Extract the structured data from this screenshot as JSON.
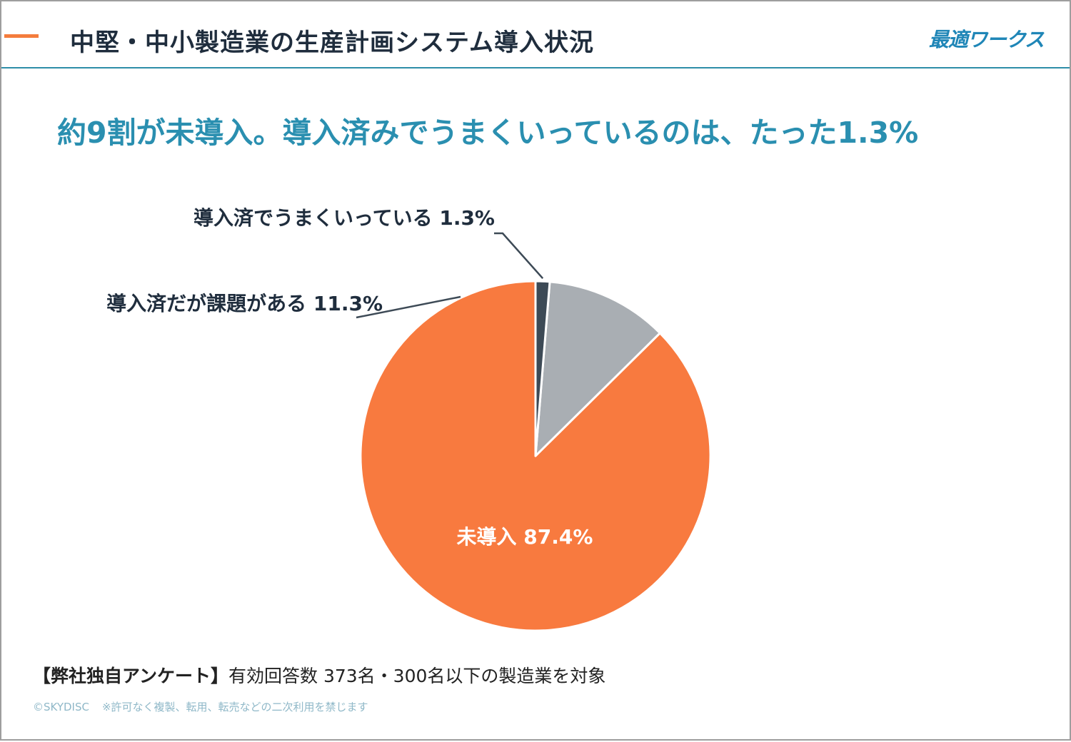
{
  "header": {
    "title": "中堅・中小製造業の生産計画システム導入状況",
    "brand": "最適ワークス",
    "accent_color": "#f47c3c",
    "rule_color": "#2e8ea8"
  },
  "headline": "約9割が未導入。導入済みでうまくいっているのは、たった1.3%",
  "chart_data": {
    "type": "pie",
    "categories": [
      "未導入",
      "導入済だが課題がある",
      "導入済でうまくいっている"
    ],
    "values": [
      87.4,
      11.3,
      1.3
    ],
    "labels": [
      "未導入 87.4%",
      "導入済だが課題がある 11.3%",
      "導入済でうまくいっている 1.3%"
    ],
    "colors": [
      "#f87a3f",
      "#a9aeb3",
      "#3d4a56"
    ]
  },
  "footer": {
    "note_head": "【弊社独自アンケート】",
    "note_body": "有効回答数 373名・300名以下の製造業を対象",
    "copyright": "©SKYDISC",
    "disclaimer": "※許可なく複製、転用、転売などの二次利用を禁じます"
  }
}
